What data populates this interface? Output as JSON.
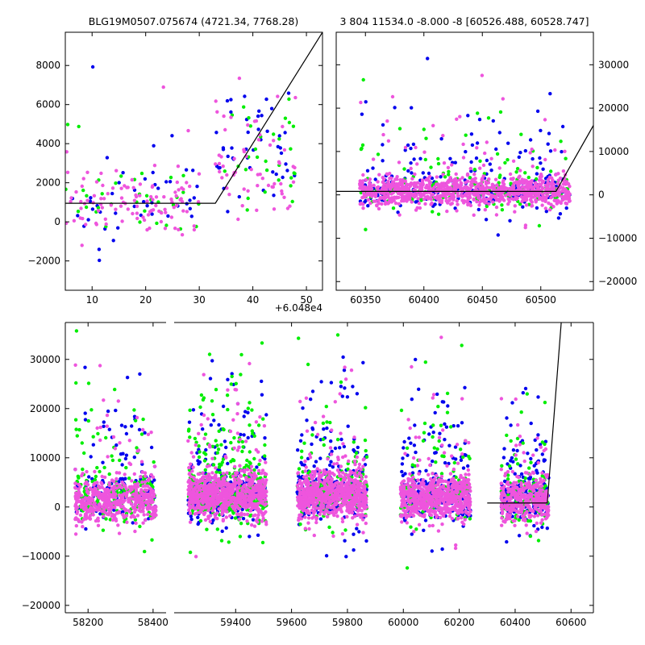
{
  "chart_data": [
    {
      "type": "scatter",
      "title": "BLG19M0507.075674 (4721.34, 7768.28)",
      "xlim": [
        5,
        53
      ],
      "ylim": [
        -3500,
        9700
      ],
      "x_offset_label": "+6.048e4",
      "x_ticks": [
        10,
        20,
        30,
        40,
        50
      ],
      "y_ticks": [
        -2000,
        0,
        2000,
        4000,
        6000,
        8000
      ],
      "x_tick_labels": [
        "10",
        "20",
        "30",
        "40",
        "50"
      ],
      "y_tick_labels": [
        "−2000",
        "0",
        "2000",
        "4000",
        "6000",
        "8000"
      ],
      "y_axis_side": "left",
      "series_colors": [
        "#0000ee",
        "#00ee00",
        "#ee55dd"
      ],
      "model_line": [
        [
          5,
          950
        ],
        [
          33,
          950
        ],
        [
          53,
          9700
        ]
      ],
      "clusters": [
        {
          "x_range": [
            5,
            30
          ],
          "y_center": 900,
          "y_spread": 800,
          "counts": [
            45,
            35,
            110
          ],
          "outlier_spread": 3500
        },
        {
          "x_range": [
            33,
            48
          ],
          "y_center": 3000,
          "y_spread": 1600,
          "counts": [
            45,
            30,
            60
          ],
          "outlier_spread": 3000
        }
      ]
    },
    {
      "type": "scatter",
      "title": "3 804 11534.0 -8.000 -8 [60526.488, 60528.747]",
      "xlim": [
        60325,
        60545
      ],
      "ylim": [
        -22000,
        37500
      ],
      "x_ticks": [
        60350,
        60400,
        60450,
        60500
      ],
      "y_ticks": [
        -20000,
        -10000,
        0,
        10000,
        20000,
        30000
      ],
      "x_tick_labels": [
        "60350",
        "60400",
        "60450",
        "60500"
      ],
      "y_tick_labels": [
        "−20000",
        "−10000",
        "0",
        "10000",
        "20000",
        "30000"
      ],
      "y_axis_side": "right",
      "series_colors": [
        "#0000ee",
        "#00ee00",
        "#ee55dd"
      ],
      "model_line": [
        [
          60325,
          800
        ],
        [
          60513,
          800
        ],
        [
          60545,
          16000
        ]
      ],
      "clusters": [
        {
          "x_range": [
            60345,
            60525
          ],
          "y_center": 800,
          "y_spread": 1600,
          "counts": [
            260,
            170,
            950
          ],
          "outlier_spread": 9000
        }
      ]
    },
    {
      "type": "scatter",
      "title": "",
      "xlim": [
        58130,
        60680
      ],
      "ylim": [
        -21500,
        37500
      ],
      "x_ticks": [
        58200,
        58400,
        59400,
        59600,
        59800,
        60000,
        60200,
        60400,
        60600
      ],
      "y_ticks": [
        -20000,
        -10000,
        0,
        10000,
        20000,
        30000
      ],
      "x_tick_labels": [
        "58200",
        "58400",
        "59400",
        "59600",
        "59800",
        "60000",
        "60200",
        "60400",
        "60600"
      ],
      "y_tick_labels": [
        "−20000",
        "−10000",
        "0",
        "10000",
        "20000",
        "30000"
      ],
      "y_axis_side": "left",
      "broken_x_axis": true,
      "series_colors": [
        "#0000ee",
        "#00ee00",
        "#ee55dd"
      ],
      "model_line": [
        [
          60300,
          800
        ],
        [
          60515,
          800
        ],
        [
          60565,
          37500
        ]
      ],
      "clusters": [
        {
          "x_range": [
            58160,
            58410
          ],
          "y_center": 1500,
          "y_spread": 2200,
          "counts": [
            170,
            180,
            500
          ],
          "outlier_spread": 12000
        },
        {
          "x_range": [
            59230,
            59510
          ],
          "y_center": 2500,
          "y_spread": 2200,
          "counts": [
            270,
            380,
            800
          ],
          "outlier_spread": 12000
        },
        {
          "x_range": [
            59620,
            59870
          ],
          "y_center": 2300,
          "y_spread": 2300,
          "counts": [
            300,
            170,
            700
          ],
          "outlier_spread": 11000
        },
        {
          "x_range": [
            59990,
            60240
          ],
          "y_center": 1800,
          "y_spread": 2000,
          "counts": [
            260,
            160,
            650
          ],
          "outlier_spread": 11000
        },
        {
          "x_range": [
            60350,
            60520
          ],
          "y_center": 1500,
          "y_spread": 2200,
          "counts": [
            200,
            110,
            380
          ],
          "outlier_spread": 9000
        }
      ]
    }
  ]
}
